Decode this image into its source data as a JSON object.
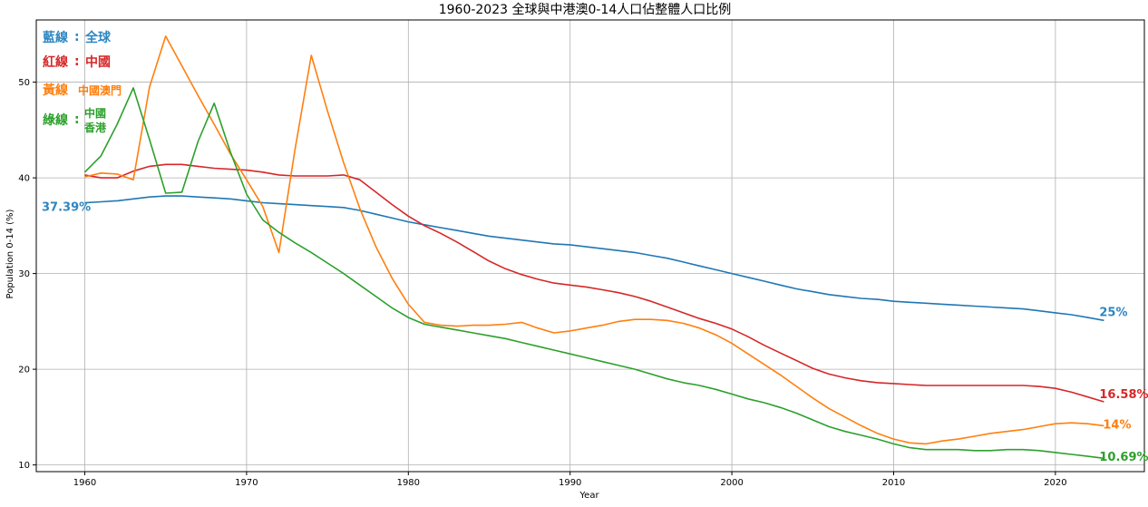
{
  "chart_data": {
    "type": "line",
    "title": "1960-2023 全球與中港澳0-14人口佔整體人口比例",
    "xlabel": "Year",
    "ylabel": "Population 0-14 (%)",
    "xlim": [
      1957,
      2025.5
    ],
    "ylim": [
      9.3,
      56.5
    ],
    "xticks": [
      1960,
      1970,
      1980,
      1990,
      2000,
      2010,
      2020
    ],
    "yticks": [
      10,
      20,
      30,
      40,
      50
    ],
    "grid": true,
    "legend": {
      "placement": "top-left",
      "items": [
        {
          "key": "藍線",
          "sep": ":",
          "label": "全球",
          "color": "#2e86c1"
        },
        {
          "key": "紅線",
          "sep": ":",
          "label": "中國",
          "color": "#d62728"
        },
        {
          "key": "黃線",
          "sep": "",
          "label": "中國澳門",
          "color": "#ff7f0e"
        },
        {
          "key": "綠線",
          "sep": ":",
          "label": "中國",
          "label2": "香港",
          "color": "#2ca02c"
        }
      ]
    },
    "annotations": [
      {
        "text": "37.39%",
        "x": 1960,
        "y": 37.39,
        "color": "#2e86c1"
      },
      {
        "text": "25%",
        "x": 2023,
        "y": 25.1,
        "color": "#2e86c1"
      },
      {
        "text": "16.58%",
        "x": 2023,
        "y": 16.6,
        "color": "#d62728"
      },
      {
        "text": "14%",
        "x": 2023,
        "y": 14.1,
        "color": "#ff7f0e"
      },
      {
        "text": "10.69%",
        "x": 2023,
        "y": 10.7,
        "color": "#2ca02c"
      }
    ],
    "x": [
      1960,
      1961,
      1962,
      1963,
      1964,
      1965,
      1966,
      1967,
      1968,
      1969,
      1970,
      1971,
      1972,
      1973,
      1974,
      1975,
      1976,
      1977,
      1978,
      1979,
      1980,
      1981,
      1982,
      1983,
      1984,
      1985,
      1986,
      1987,
      1988,
      1989,
      1990,
      1991,
      1992,
      1993,
      1994,
      1995,
      1996,
      1997,
      1998,
      1999,
      2000,
      2001,
      2002,
      2003,
      2004,
      2005,
      2006,
      2007,
      2008,
      2009,
      2010,
      2011,
      2012,
      2013,
      2014,
      2015,
      2016,
      2017,
      2018,
      2019,
      2020,
      2021,
      2022,
      2023
    ],
    "series": [
      {
        "name": "全球",
        "color": "#1f77b4",
        "values": [
          37.39,
          37.5,
          37.6,
          37.8,
          38.0,
          38.1,
          38.1,
          38.0,
          37.9,
          37.8,
          37.6,
          37.4,
          37.3,
          37.2,
          37.1,
          37.0,
          36.9,
          36.6,
          36.2,
          35.8,
          35.4,
          35.1,
          34.8,
          34.5,
          34.2,
          33.9,
          33.7,
          33.5,
          33.3,
          33.1,
          33.0,
          32.8,
          32.6,
          32.4,
          32.2,
          31.9,
          31.6,
          31.2,
          30.8,
          30.4,
          30.0,
          29.6,
          29.2,
          28.8,
          28.4,
          28.1,
          27.8,
          27.6,
          27.4,
          27.3,
          27.1,
          27.0,
          26.9,
          26.8,
          26.7,
          26.6,
          26.5,
          26.4,
          26.3,
          26.1,
          25.9,
          25.7,
          25.4,
          25.1
        ]
      },
      {
        "name": "中國",
        "color": "#d62728",
        "values": [
          40.3,
          40.0,
          40.0,
          40.7,
          41.2,
          41.4,
          41.4,
          41.2,
          41.0,
          40.9,
          40.8,
          40.6,
          40.3,
          40.2,
          40.2,
          40.2,
          40.3,
          39.8,
          38.5,
          37.2,
          36.0,
          35.0,
          34.2,
          33.3,
          32.3,
          31.3,
          30.5,
          29.9,
          29.4,
          29.0,
          28.8,
          28.6,
          28.3,
          28.0,
          27.6,
          27.1,
          26.5,
          25.9,
          25.3,
          24.8,
          24.2,
          23.4,
          22.5,
          21.7,
          20.9,
          20.1,
          19.5,
          19.1,
          18.8,
          18.6,
          18.5,
          18.4,
          18.3,
          18.3,
          18.3,
          18.3,
          18.3,
          18.3,
          18.3,
          18.2,
          18.0,
          17.6,
          17.1,
          16.6
        ]
      },
      {
        "name": "中國澳門",
        "color": "#ff7f0e",
        "values": [
          40.1,
          40.5,
          40.4,
          39.8,
          49.5,
          54.8,
          51.7,
          48.6,
          45.6,
          42.5,
          39.8,
          37.0,
          32.2,
          43.0,
          52.8,
          47.0,
          41.6,
          36.8,
          32.8,
          29.5,
          26.8,
          24.9,
          24.6,
          24.5,
          24.6,
          24.6,
          24.7,
          24.9,
          24.3,
          23.8,
          24.0,
          24.3,
          24.6,
          25.0,
          25.2,
          25.2,
          25.1,
          24.8,
          24.3,
          23.6,
          22.7,
          21.6,
          20.5,
          19.4,
          18.2,
          17.0,
          15.9,
          15.0,
          14.1,
          13.3,
          12.7,
          12.3,
          12.2,
          12.5,
          12.7,
          13.0,
          13.3,
          13.5,
          13.7,
          14.0,
          14.3,
          14.4,
          14.3,
          14.1
        ]
      },
      {
        "name": "中國香港",
        "color": "#2ca02c",
        "values": [
          40.6,
          42.3,
          45.6,
          49.4,
          44.0,
          38.4,
          38.5,
          43.8,
          47.8,
          42.7,
          38.3,
          35.6,
          34.3,
          33.2,
          32.2,
          31.1,
          30.0,
          28.8,
          27.6,
          26.4,
          25.4,
          24.7,
          24.4,
          24.1,
          23.8,
          23.5,
          23.2,
          22.8,
          22.4,
          22.0,
          21.6,
          21.2,
          20.8,
          20.4,
          20.0,
          19.5,
          19.0,
          18.6,
          18.3,
          17.9,
          17.4,
          16.9,
          16.5,
          16.0,
          15.4,
          14.7,
          14.0,
          13.5,
          13.1,
          12.7,
          12.2,
          11.8,
          11.6,
          11.6,
          11.6,
          11.5,
          11.5,
          11.6,
          11.6,
          11.5,
          11.3,
          11.1,
          10.9,
          10.69
        ]
      }
    ]
  }
}
